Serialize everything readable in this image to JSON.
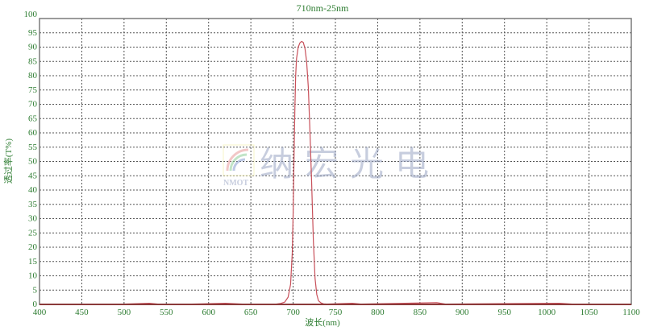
{
  "chart_data": {
    "type": "line",
    "title": "710nm-25nm",
    "xlabel": "波长(nm)",
    "ylabel": "透过率(T%)",
    "xlim": [
      400,
      1100
    ],
    "ylim": [
      0,
      100
    ],
    "x_ticks": [
      400,
      450,
      500,
      550,
      600,
      650,
      700,
      750,
      800,
      850,
      900,
      950,
      1000,
      1050,
      1100
    ],
    "y_ticks": [
      0,
      5,
      10,
      15,
      20,
      25,
      30,
      35,
      40,
      45,
      50,
      55,
      60,
      65,
      70,
      75,
      80,
      85,
      90,
      95,
      100
    ],
    "grid": true,
    "grid_style": "dotted",
    "series": [
      {
        "color": "#c8505a",
        "x": [
          400,
          450,
          500,
          530,
          540,
          580,
          620,
          640,
          680,
          685,
          690,
          694,
          697,
          699,
          700,
          701,
          702,
          703,
          704,
          706,
          708,
          710,
          712,
          714,
          716,
          718,
          720,
          722,
          724,
          726,
          728,
          730,
          733,
          736,
          740,
          770,
          780,
          870,
          880,
          1015,
          1030,
          1100
        ],
        "y": [
          0.1,
          0.1,
          0.1,
          0.4,
          0.1,
          0.1,
          0.4,
          0.1,
          0.1,
          0.3,
          0.8,
          2.5,
          7,
          18,
          32,
          50,
          68,
          80,
          86,
          90,
          91.5,
          92,
          91.6,
          89.5,
          85,
          76,
          60,
          42,
          22,
          9,
          3.5,
          1.3,
          0.5,
          0.2,
          0.1,
          0.4,
          0.1,
          0.6,
          0.1,
          0.4,
          0.1,
          0.1
        ]
      }
    ],
    "colors": {
      "tick_label": "#2e7d32",
      "title": "#2e7d32",
      "axis": "#7a7a7a",
      "grid": "#555555"
    },
    "watermark": {
      "text": "纳宏光电",
      "logo_text": "NMOT"
    }
  }
}
